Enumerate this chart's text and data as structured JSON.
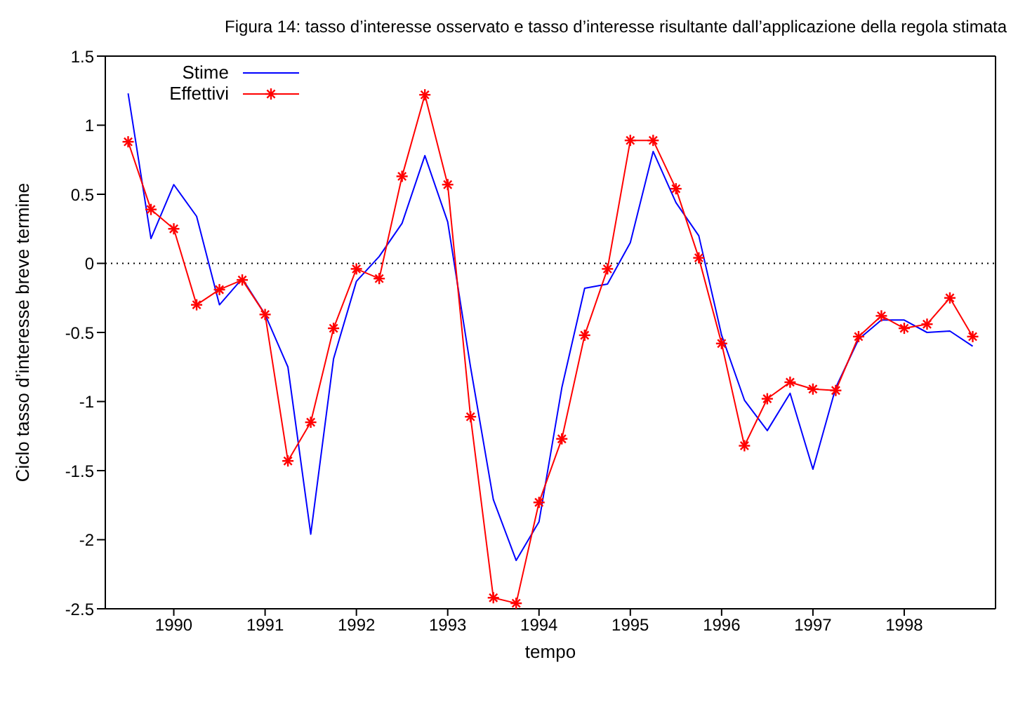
{
  "chart_data": {
    "type": "line",
    "title": "Figura 14: tasso d’interesse osservato e tasso d’interesse risultante dall’applicazione della regola stimata",
    "xlabel": "tempo",
    "ylabel": "Ciclo tasso d’interesse breve termine",
    "x": [
      1989.5,
      1989.75,
      1990,
      1990.25,
      1990.5,
      1990.75,
      1991,
      1991.25,
      1991.5,
      1991.75,
      1992,
      1992.25,
      1992.5,
      1992.75,
      1993,
      1993.25,
      1993.5,
      1993.75,
      1994,
      1994.25,
      1994.5,
      1994.75,
      1995,
      1995.25,
      1995.5,
      1995.75,
      1996,
      1996.25,
      1996.5,
      1996.75,
      1997,
      1997.25,
      1997.5,
      1997.75,
      1998,
      1998.25,
      1998.5,
      1998.75
    ],
    "series": [
      {
        "name": "Stime",
        "color": "#0000ff",
        "marker": "none",
        "values": [
          1.23,
          0.18,
          0.57,
          0.34,
          -0.3,
          -0.11,
          -0.37,
          -0.75,
          -1.96,
          -0.69,
          -0.13,
          0.05,
          0.29,
          0.78,
          0.3,
          -0.75,
          -1.71,
          -2.15,
          -1.87,
          -0.9,
          -0.18,
          -0.15,
          0.15,
          0.81,
          0.44,
          0.2,
          -0.52,
          -0.99,
          -1.21,
          -0.94,
          -1.49,
          -0.9,
          -0.55,
          -0.41,
          -0.41,
          -0.5,
          -0.49,
          -0.6
        ]
      },
      {
        "name": "Effettivi",
        "color": "#ff0000",
        "marker": "cross",
        "values": [
          0.88,
          0.39,
          0.25,
          -0.3,
          -0.19,
          -0.12,
          -0.37,
          -1.43,
          -1.15,
          -0.47,
          -0.04,
          -0.11,
          0.63,
          1.22,
          0.57,
          -1.11,
          -2.42,
          -2.46,
          -1.73,
          -1.27,
          -0.52,
          -0.04,
          0.89,
          0.89,
          0.54,
          0.04,
          -0.58,
          -1.32,
          -0.98,
          -0.86,
          -0.91,
          -0.92,
          -0.53,
          -0.38,
          -0.47,
          -0.44,
          -0.25,
          -0.53
        ]
      }
    ],
    "xlim": [
      1989.25,
      1999
    ],
    "xticks": [
      1990,
      1991,
      1992,
      1993,
      1994,
      1995,
      1996,
      1997,
      1998
    ],
    "ylim": [
      -2.5,
      1.5
    ],
    "yticks": [
      -2.5,
      -2,
      -1.5,
      -1,
      -0.5,
      0,
      0.5,
      1,
      1.5
    ],
    "ref_lines": [
      {
        "axis": "y",
        "value": 0,
        "color": "#000000",
        "line_style": "dotted"
      }
    ],
    "legend": "top left"
  }
}
